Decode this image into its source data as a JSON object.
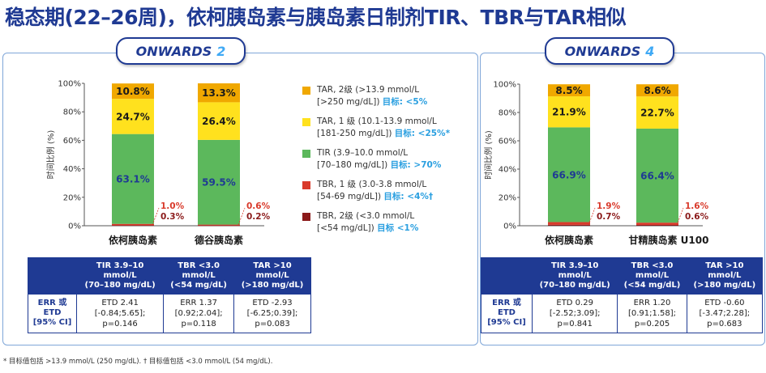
{
  "title": "稳态期(22–26周)，依柯胰岛素与胰岛素日制剂TIR、TBR与TAR相似",
  "badges": [
    {
      "name": "ONWARDS",
      "num": "2"
    },
    {
      "name": "ONWARDS",
      "num": "4"
    }
  ],
  "colors": {
    "tar2": "#f0a800",
    "tar1": "#ffe11e",
    "tir": "#5cb85c",
    "tbr1": "#d93a2b",
    "tbr2": "#8b1a1a",
    "navy": "#1f3a93",
    "target": "#2a9fe0"
  },
  "legend": [
    {
      "key": "tar2",
      "line1": "TAR, 2级 (>13.9 mmol/L",
      "line2": "[>250 mg/dL]) ",
      "target": "目标: <5%"
    },
    {
      "key": "tar1",
      "line1": "TAR, 1 级 (10.1-13.9 mmol/L",
      "line2": "[181-250 mg/dL]) ",
      "target": "目标: <25%*"
    },
    {
      "key": "tir",
      "line1": "TIR (3.9–10.0 mmol/L",
      "line2": "[70–180 mg/dL]) ",
      "target": "目标: >70%"
    },
    {
      "key": "tbr1",
      "line1": "TBR, 1 级 (3.0-3.8 mmol/L",
      "line2": "[54-69 mg/dL]) ",
      "target": "目标: <4%†"
    },
    {
      "key": "tbr2",
      "line1": "TBR, 2级 (<3.0 mmol/L",
      "line2": "[<54 mg/dL]) ",
      "target": "目标 <1%"
    }
  ],
  "chart_data": [
    {
      "type": "bar",
      "stacked": true,
      "ylabel": "时间比例 (%)",
      "ylim": [
        0,
        100
      ],
      "yticks": [
        "0%",
        "20%",
        "40%",
        "60%",
        "80%",
        "100%"
      ],
      "categories": [
        "依柯胰岛素",
        "德谷胰岛素"
      ],
      "series": [
        {
          "name": "TBR, 2级",
          "key": "tbr2",
          "values": [
            0.3,
            0.2
          ]
        },
        {
          "name": "TBR, 1 级",
          "key": "tbr1",
          "values": [
            1.0,
            0.6
          ]
        },
        {
          "name": "TIR",
          "key": "tir",
          "values": [
            63.1,
            59.5
          ]
        },
        {
          "name": "TAR, 1 级",
          "key": "tar1",
          "values": [
            24.7,
            26.4
          ]
        },
        {
          "name": "TAR, 2级",
          "key": "tar2",
          "values": [
            10.8,
            13.3
          ]
        }
      ],
      "labels": {
        "tar2": [
          "10.8%",
          "13.3%"
        ],
        "tar1": [
          "24.7%",
          "26.4%"
        ],
        "tir": [
          "63.1%",
          "59.5%"
        ],
        "tbr1": [
          "1.0%",
          "0.6%"
        ],
        "tbr2": [
          "0.3%",
          "0.2%"
        ]
      }
    },
    {
      "type": "bar",
      "stacked": true,
      "ylabel": "时间比例 (%)",
      "ylim": [
        0,
        100
      ],
      "yticks": [
        "0%",
        "20%",
        "40%",
        "60%",
        "80%",
        "100%"
      ],
      "categories": [
        "依柯胰岛素",
        "甘精胰岛素 U100"
      ],
      "series": [
        {
          "name": "TBR, 2级",
          "key": "tbr2",
          "values": [
            0.7,
            0.6
          ]
        },
        {
          "name": "TBR, 1 级",
          "key": "tbr1",
          "values": [
            1.9,
            1.6
          ]
        },
        {
          "name": "TIR",
          "key": "tir",
          "values": [
            66.9,
            66.4
          ]
        },
        {
          "name": "TAR, 1 级",
          "key": "tar1",
          "values": [
            21.9,
            22.7
          ]
        },
        {
          "name": "TAR, 2级",
          "key": "tar2",
          "values": [
            8.5,
            8.6
          ]
        }
      ],
      "labels": {
        "tar2": [
          "8.5%",
          "8.6%"
        ],
        "tar1": [
          "21.9%",
          "22.7%"
        ],
        "tir": [
          "66.9%",
          "66.4%"
        ],
        "tbr1": [
          "1.9%",
          "1.6%"
        ],
        "tbr2": [
          "0.7%",
          "0.6%"
        ]
      }
    }
  ],
  "tables": [
    {
      "headers": [
        [
          "TIR 3.9–10",
          "mmol/L",
          "(70–180 mg/dL)"
        ],
        [
          "TBR <3.0",
          "mmol/L",
          "(<54 mg/dL)"
        ],
        [
          "TAR >10",
          "mmol/L",
          "(>180 mg/dL)"
        ]
      ],
      "rowhead": [
        "ERR 或",
        "ETD",
        "[95% CI]"
      ],
      "cells": [
        [
          "ETD 2.41",
          "[-0.84;5.65];",
          "p=0.146"
        ],
        [
          "ERR 1.37",
          "[0.92;2.04];",
          "p=0.118"
        ],
        [
          "ETD -2.93",
          "[-6.25;0.39];",
          "p=0.083"
        ]
      ]
    },
    {
      "headers": [
        [
          "TIR 3.9–10",
          "mmol/L",
          "(70–180 mg/dL)"
        ],
        [
          "TBR <3.0",
          "mmol/L",
          "(<54 mg/dL)"
        ],
        [
          "TAR >10",
          "mmol/L",
          "(>180 mg/dL)"
        ]
      ],
      "rowhead": [
        "ERR 或",
        "ETD",
        "[95% CI]"
      ],
      "cells": [
        [
          "ETD 0.29",
          "[-2.52;3.09];",
          "p=0.841"
        ],
        [
          "ERR 1.20",
          "[0.91;1.58];",
          "p=0.205"
        ],
        [
          "ETD -0.60",
          "[-3.47;2.28];",
          "p=0.683"
        ]
      ]
    }
  ],
  "footnote": "* 目标值包括 >13.9 mmol/L (250 mg/dL). † 目标值包括 <3.0 mmol/L (54 mg/dL)."
}
